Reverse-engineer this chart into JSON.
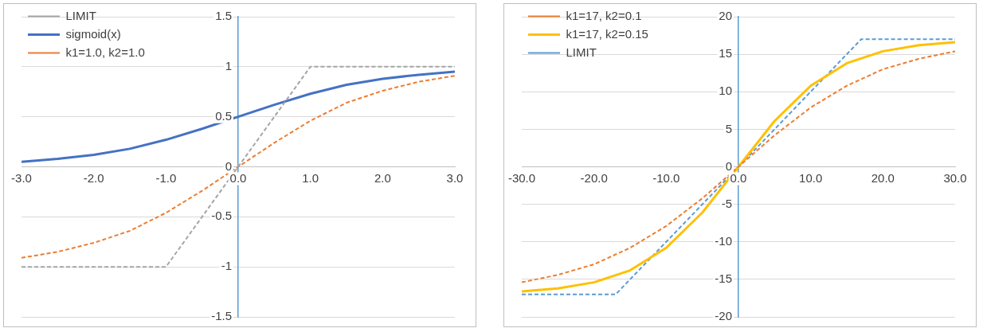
{
  "chart_data": [
    {
      "type": "line",
      "xlim": [
        -3,
        3
      ],
      "ylim": [
        -1.5,
        1.5
      ],
      "xticks": [
        {
          "value": -3,
          "label": "-3.0"
        },
        {
          "value": -2,
          "label": "-2.0"
        },
        {
          "value": -1,
          "label": "-1.0"
        },
        {
          "value": 0,
          "label": "0.0"
        },
        {
          "value": 1,
          "label": "1.0"
        },
        {
          "value": 2,
          "label": "2.0"
        },
        {
          "value": 3,
          "label": "3.0"
        }
      ],
      "yticks": [
        -1.5,
        -1,
        -0.5,
        0,
        0.5,
        1,
        1.5
      ],
      "grid": "y",
      "legend": "top left",
      "marker": "none",
      "series": [
        {
          "name": "LIMIT",
          "color": "#a5a5a5",
          "line_style": "dashed",
          "x": [
            -3,
            -1,
            1,
            3
          ],
          "values": [
            -1,
            -1,
            1,
            1
          ]
        },
        {
          "name": "sigmoid(x)",
          "color": "#4472c4",
          "line_style": "solid",
          "x": [
            -3,
            -2.5,
            -2,
            -1.5,
            -1,
            -0.5,
            0,
            0.5,
            1,
            1.5,
            2,
            2.5,
            3
          ],
          "values": [
            0.05,
            0.08,
            0.12,
            0.18,
            0.27,
            0.38,
            0.5,
            0.62,
            0.73,
            0.82,
            0.88,
            0.92,
            0.95
          ]
        },
        {
          "name": "k1=1.0, k2=1.0",
          "color": "#ed7d31",
          "line_style": "dashed",
          "x": [
            -3,
            -2.5,
            -2,
            -1.5,
            -1,
            -0.5,
            0,
            0.5,
            1,
            1.5,
            2,
            2.5,
            3
          ],
          "values": [
            -0.91,
            -0.85,
            -0.76,
            -0.64,
            -0.46,
            -0.24,
            0,
            0.24,
            0.46,
            0.64,
            0.76,
            0.85,
            0.91
          ]
        }
      ]
    },
    {
      "type": "line",
      "xlim": [
        -30,
        30
      ],
      "ylim": [
        -20,
        20
      ],
      "xticks": [
        {
          "value": -30,
          "label": "-30.0"
        },
        {
          "value": -20,
          "label": "-20.0"
        },
        {
          "value": -10,
          "label": "-10.0"
        },
        {
          "value": 0,
          "label": "0.0"
        },
        {
          "value": 10,
          "label": "10.0"
        },
        {
          "value": 20,
          "label": "20.0"
        },
        {
          "value": 30,
          "label": "30.0"
        }
      ],
      "yticks": [
        -20,
        -15,
        -10,
        -5,
        0,
        5,
        10,
        15,
        20
      ],
      "grid": "y",
      "legend": "top left",
      "marker": "none",
      "series": [
        {
          "name": "k1=17, k2=0.1",
          "color": "#ed7d31",
          "line_style": "dashed",
          "x": [
            -30,
            -25,
            -20,
            -15,
            -10,
            -5,
            0,
            5,
            10,
            15,
            20,
            25,
            30
          ],
          "values": [
            -15.4,
            -14.4,
            -13.0,
            -10.8,
            -7.9,
            -4.2,
            0,
            4.2,
            7.9,
            10.8,
            13.0,
            14.4,
            15.4
          ]
        },
        {
          "name": "k1=17, k2=0.15",
          "color": "#ffc000",
          "line_style": "solid",
          "x": [
            -30,
            -25,
            -20,
            -15,
            -10,
            -5,
            0,
            5,
            10,
            15,
            20,
            25,
            30
          ],
          "values": [
            -16.6,
            -16.2,
            -15.4,
            -13.8,
            -10.8,
            -6.1,
            0,
            6.1,
            10.8,
            13.8,
            15.4,
            16.2,
            16.6
          ]
        },
        {
          "name": "LIMIT",
          "color": "#5b9bd5",
          "line_style": "dashed",
          "x": [
            -30,
            -17,
            17,
            30
          ],
          "values": [
            -17,
            -17,
            17,
            17
          ]
        }
      ]
    }
  ]
}
